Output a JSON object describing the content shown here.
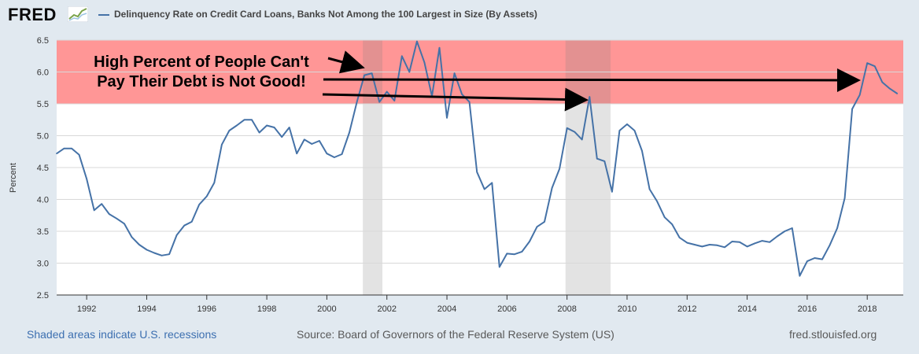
{
  "brand": {
    "logo_text": "FRED",
    "icon": "fred-graph-icon"
  },
  "legend": {
    "label": "Delinquency Rate on Credit Card Loans, Banks Not Among the 100 Largest in Size (By Assets)",
    "color": "#4572a7"
  },
  "footer": {
    "recession_note": "Shaded areas indicate U.S. recessions",
    "source": "Source: Board of Governors of the Federal Reserve System (US)",
    "site": "fred.stlouisfed.org"
  },
  "chart_data": {
    "type": "line",
    "title": "Delinquency Rate on Credit Card Loans, Banks Not Among the 100 Largest in Size (By Assets)",
    "xlabel": "",
    "ylabel": "Percent",
    "xlim": [
      1991.0,
      2019.2
    ],
    "ylim": [
      2.5,
      6.5
    ],
    "x_ticks": [
      1992,
      1994,
      1996,
      1998,
      2000,
      2002,
      2004,
      2006,
      2008,
      2010,
      2012,
      2014,
      2016,
      2018
    ],
    "y_ticks": [
      "2.5",
      "3.0",
      "3.5",
      "4.0",
      "4.5",
      "5.0",
      "5.5",
      "6.0",
      "6.5"
    ],
    "grid": "horizontal",
    "recessions": [
      [
        2001.2,
        2001.85
      ],
      [
        2007.95,
        2009.45
      ]
    ],
    "highlight_band": {
      "y_from": 5.5,
      "y_to": 6.5,
      "color": "#ff9696"
    },
    "annotation": {
      "lines": [
        "High Percent of People Can't",
        "Pay Their Debt is Not Good!"
      ]
    },
    "series": [
      {
        "name": "Delinquency Rate on Credit Card Loans, Banks Not Among the 100 Largest in Size (By Assets)",
        "color": "#4572a7",
        "x": [
          1991.0,
          1991.25,
          1991.5,
          1991.75,
          1992.0,
          1992.25,
          1992.5,
          1992.75,
          1993.0,
          1993.25,
          1993.5,
          1993.75,
          1994.0,
          1994.25,
          1994.5,
          1994.75,
          1995.0,
          1995.25,
          1995.5,
          1995.75,
          1996.0,
          1996.25,
          1996.5,
          1996.75,
          1997.0,
          1997.25,
          1997.5,
          1997.75,
          1998.0,
          1998.25,
          1998.5,
          1998.75,
          1999.0,
          1999.25,
          1999.5,
          1999.75,
          2000.0,
          2000.25,
          2000.5,
          2000.75,
          2001.0,
          2001.25,
          2001.5,
          2001.75,
          2002.0,
          2002.25,
          2002.5,
          2002.75,
          2003.0,
          2003.25,
          2003.5,
          2003.75,
          2004.0,
          2004.25,
          2004.5,
          2004.75,
          2005.0,
          2005.25,
          2005.5,
          2005.75,
          2006.0,
          2006.25,
          2006.5,
          2006.75,
          2007.0,
          2007.25,
          2007.5,
          2007.75,
          2008.0,
          2008.25,
          2008.5,
          2008.75,
          2009.0,
          2009.25,
          2009.5,
          2009.75,
          2010.0,
          2010.25,
          2010.5,
          2010.75,
          2011.0,
          2011.25,
          2011.5,
          2011.75,
          2012.0,
          2012.25,
          2012.5,
          2012.75,
          2013.0,
          2013.25,
          2013.5,
          2013.75,
          2014.0,
          2014.25,
          2014.5,
          2014.75,
          2015.0,
          2015.25,
          2015.5,
          2015.75,
          2016.0,
          2016.25,
          2016.5,
          2016.75,
          2017.0,
          2017.25,
          2017.5,
          2017.75,
          2018.0,
          2018.25,
          2018.5,
          2018.75,
          2019.0
        ],
        "values": [
          4.72,
          4.8,
          4.8,
          4.7,
          4.32,
          3.83,
          3.93,
          3.77,
          3.7,
          3.62,
          3.41,
          3.29,
          3.21,
          3.16,
          3.12,
          3.14,
          3.44,
          3.59,
          3.65,
          3.92,
          4.05,
          4.26,
          4.86,
          5.08,
          5.16,
          5.25,
          5.25,
          5.05,
          5.16,
          5.13,
          4.98,
          5.13,
          4.72,
          4.94,
          4.87,
          4.92,
          4.72,
          4.66,
          4.71,
          5.05,
          5.53,
          5.95,
          5.98,
          5.53,
          5.69,
          5.55,
          6.25,
          6.0,
          6.48,
          6.15,
          5.62,
          6.38,
          5.28,
          5.98,
          5.65,
          5.53,
          4.43,
          4.16,
          4.26,
          2.94,
          3.15,
          3.14,
          3.18,
          3.34,
          3.57,
          3.65,
          4.18,
          4.48,
          5.12,
          5.06,
          4.94,
          5.61,
          4.64,
          4.6,
          4.12,
          5.08,
          5.18,
          5.08,
          4.76,
          4.16,
          3.97,
          3.72,
          3.61,
          3.4,
          3.32,
          3.29,
          3.26,
          3.29,
          3.28,
          3.25,
          3.34,
          3.33,
          3.26,
          3.31,
          3.35,
          3.33,
          3.42,
          3.5,
          3.55,
          2.8,
          3.03,
          3.08,
          3.06,
          3.28,
          3.55,
          4.02,
          5.42,
          5.64,
          6.14,
          6.09,
          5.84,
          5.74,
          5.66
        ]
      }
    ]
  }
}
